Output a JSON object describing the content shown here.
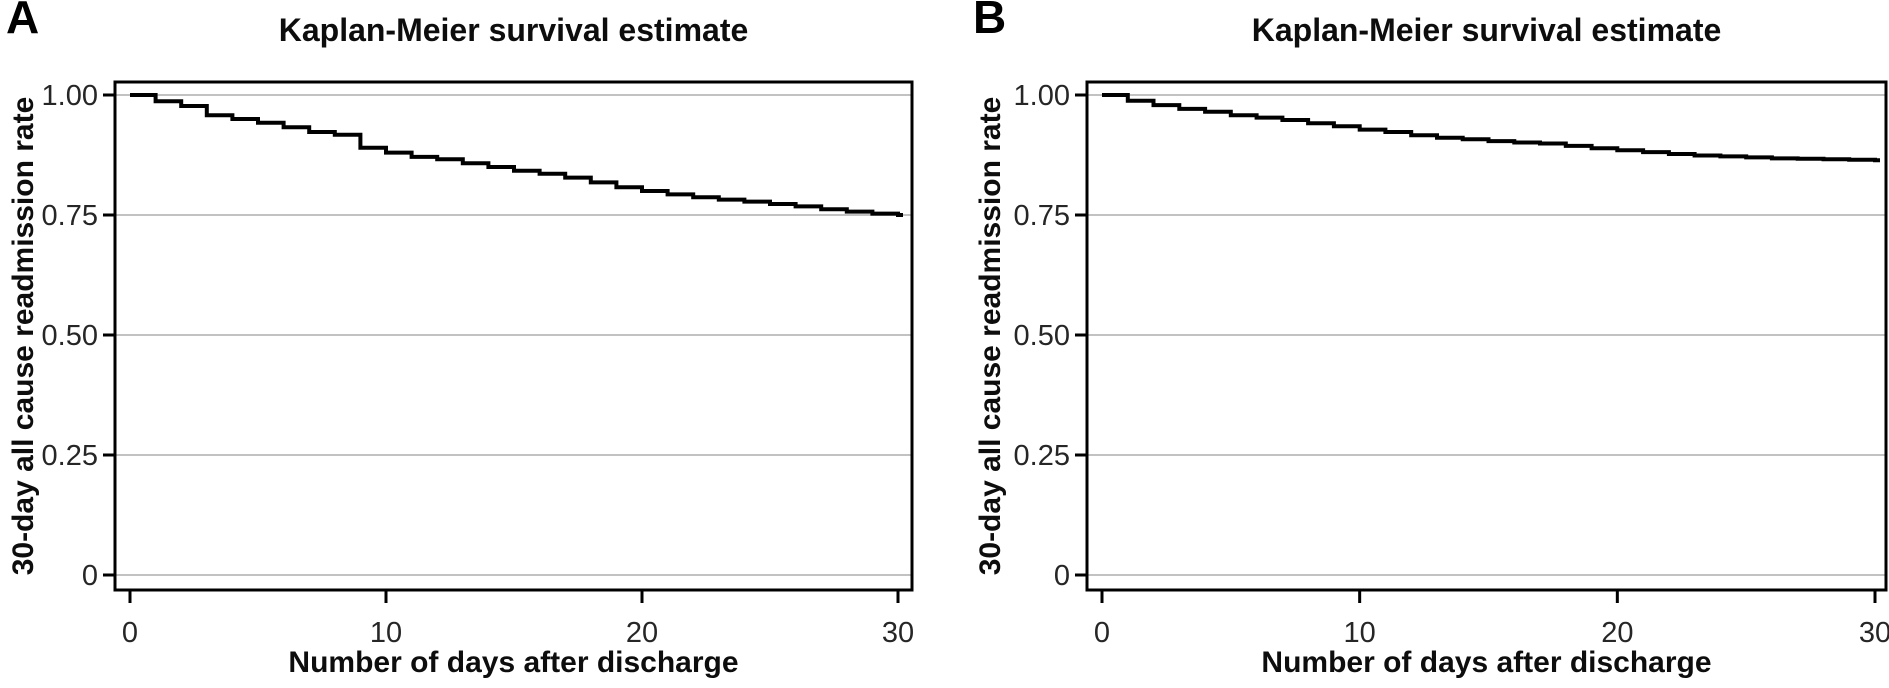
{
  "figure": {
    "panels": [
      {
        "label": "A",
        "title": "Kaplan-Meier survival estimate",
        "x_label": "Number of days after discharge",
        "y_label": "30-day all cause readmission rate"
      },
      {
        "label": "B",
        "title": "Kaplan-Meier survival estimate",
        "x_label": "Number of days after discharge",
        "y_label": "30-day all cause readmission rate"
      }
    ]
  },
  "chart_data": [
    {
      "type": "line",
      "subtype": "kaplan-meier-step",
      "panel": "A",
      "title": "Kaplan-Meier survival estimate",
      "xlabel": "Number of days after discharge",
      "ylabel": "30-day all cause readmission rate",
      "xlim": [
        0,
        30
      ],
      "ylim": [
        0,
        1.0
      ],
      "xticks": [
        0,
        10,
        20,
        30
      ],
      "xtick_labels": [
        "0",
        "10",
        "20",
        "30"
      ],
      "yticks": [
        0,
        0.25,
        0.5,
        0.75,
        1.0
      ],
      "ytick_labels": [
        "0",
        "0.25",
        "0.50",
        "0.75",
        "1.00"
      ],
      "grid": "horizontal",
      "grid_color": "#c2c2c2",
      "line_color": "#000000",
      "x": [
        0,
        1,
        2,
        3,
        4,
        5,
        6,
        7,
        8,
        9,
        10,
        11,
        12,
        13,
        14,
        15,
        16,
        17,
        18,
        19,
        20,
        21,
        22,
        23,
        24,
        25,
        26,
        27,
        28,
        29,
        30
      ],
      "y": [
        1.0,
        0.987,
        0.977,
        0.958,
        0.95,
        0.942,
        0.933,
        0.923,
        0.917,
        0.89,
        0.88,
        0.871,
        0.866,
        0.858,
        0.85,
        0.842,
        0.836,
        0.828,
        0.818,
        0.808,
        0.8,
        0.793,
        0.787,
        0.782,
        0.778,
        0.773,
        0.768,
        0.762,
        0.757,
        0.753,
        0.75
      ]
    },
    {
      "type": "line",
      "subtype": "kaplan-meier-step",
      "panel": "B",
      "title": "Kaplan-Meier survival estimate",
      "xlabel": "Number of days after discharge",
      "ylabel": "30-day all cause readmission rate",
      "xlim": [
        0,
        30
      ],
      "ylim": [
        0,
        1.0
      ],
      "xticks": [
        0,
        10,
        20,
        30
      ],
      "xtick_labels": [
        "0",
        "10",
        "20",
        "30"
      ],
      "yticks": [
        0,
        0.25,
        0.5,
        0.75,
        1.0
      ],
      "ytick_labels": [
        "0",
        "0.25",
        "0.50",
        "0.75",
        "1.00"
      ],
      "grid": "horizontal",
      "grid_color": "#c2c2c2",
      "line_color": "#000000",
      "x": [
        0,
        1,
        2,
        3,
        4,
        5,
        6,
        7,
        8,
        9,
        10,
        11,
        12,
        13,
        14,
        15,
        16,
        17,
        18,
        19,
        20,
        21,
        22,
        23,
        24,
        25,
        26,
        27,
        28,
        29,
        30
      ],
      "y": [
        1.0,
        0.988,
        0.979,
        0.971,
        0.965,
        0.958,
        0.953,
        0.948,
        0.941,
        0.935,
        0.928,
        0.923,
        0.916,
        0.911,
        0.908,
        0.904,
        0.901,
        0.899,
        0.894,
        0.889,
        0.885,
        0.881,
        0.877,
        0.874,
        0.872,
        0.87,
        0.868,
        0.867,
        0.866,
        0.865,
        0.864
      ]
    }
  ]
}
